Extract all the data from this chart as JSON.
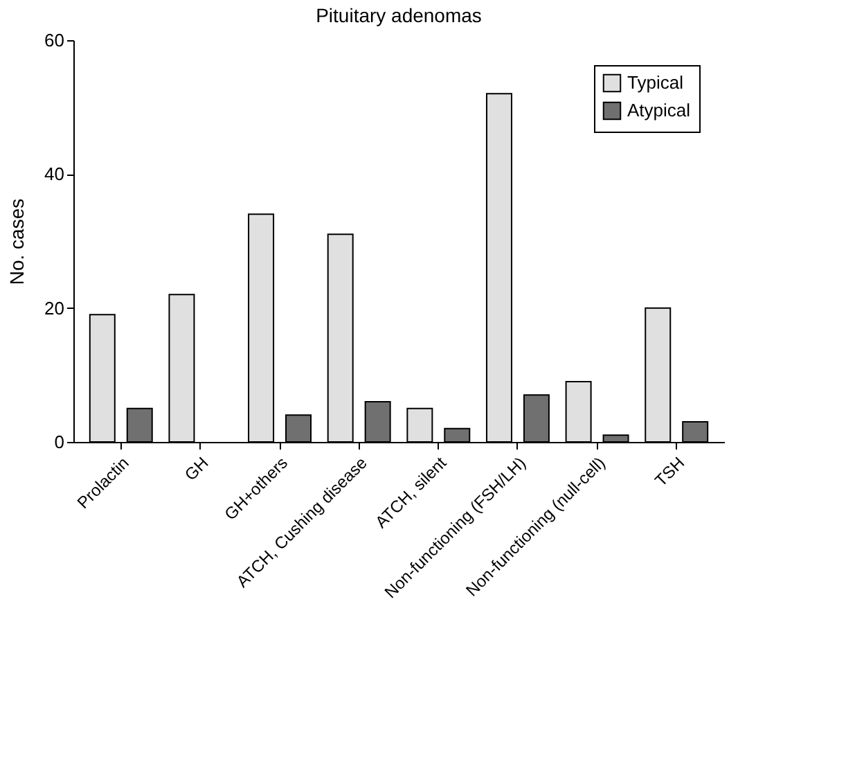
{
  "chart_data": {
    "type": "bar",
    "title": "Pituitary adenomas",
    "ylabel": "No. cases",
    "categories": [
      "Prolactin",
      "GH",
      "GH+others",
      "ATCH, Cushing disease",
      "ATCH, silent",
      "Non-functioning (FSH/LH)",
      "Non-functioning (null-cell)",
      "TSH"
    ],
    "series": [
      {
        "name": "Typical",
        "color": "#e0e0e0",
        "values": [
          19,
          22,
          34,
          31,
          5,
          52,
          9,
          20
        ]
      },
      {
        "name": "Atypical",
        "color": "#707070",
        "values": [
          5,
          null,
          4,
          6,
          2,
          7,
          1,
          3
        ]
      }
    ],
    "ylim": [
      0,
      60
    ],
    "yticks": [
      0,
      20,
      40,
      60
    ],
    "grid": false,
    "legend": "top right"
  }
}
